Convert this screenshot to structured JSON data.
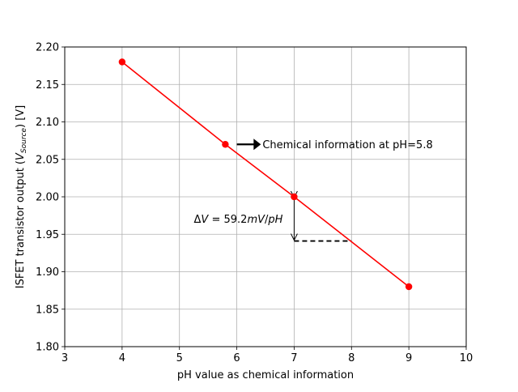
{
  "chart_data": {
    "type": "line",
    "xlabel": "pH value as chemical information",
    "ylabel": {
      "prefix": "ISFET transistor output (",
      "var": "V",
      "sub": "Source",
      "suffix": ") [V]"
    },
    "xlim": [
      3,
      10
    ],
    "ylim": [
      1.8,
      2.2
    ],
    "xticks": [
      3,
      4,
      5,
      6,
      7,
      8,
      9,
      10
    ],
    "xtick_labels": [
      "3",
      "4",
      "5",
      "6",
      "7",
      "8",
      "9",
      "10"
    ],
    "yticks": [
      1.8,
      1.85,
      1.9,
      1.95,
      2.0,
      2.05,
      2.1,
      2.15,
      2.2
    ],
    "ytick_labels": [
      "1.80",
      "1.85",
      "1.90",
      "1.95",
      "2.00",
      "2.05",
      "2.10",
      "2.15",
      "2.20"
    ],
    "grid": true,
    "series": [
      {
        "x": [
          4,
          5.8,
          7,
          9
        ],
        "y": [
          2.18,
          2.07,
          2.0,
          1.88
        ],
        "color": "#ff0000",
        "marker": "circle"
      }
    ],
    "annotations": {
      "info_arrow": {
        "text": "Chemical information at pH=5.8",
        "from": [
          6.0,
          2.07
        ],
        "to": [
          6.42,
          2.07
        ]
      },
      "delta": {
        "text_parts": [
          "Δ",
          "V",
          " = 59.2",
          "mV",
          "/",
          "pH"
        ],
        "x": 7,
        "y_top": 2.0,
        "y_bottom": 1.941,
        "dashed_from_x": 7,
        "dashed_to_x": 8
      }
    }
  }
}
